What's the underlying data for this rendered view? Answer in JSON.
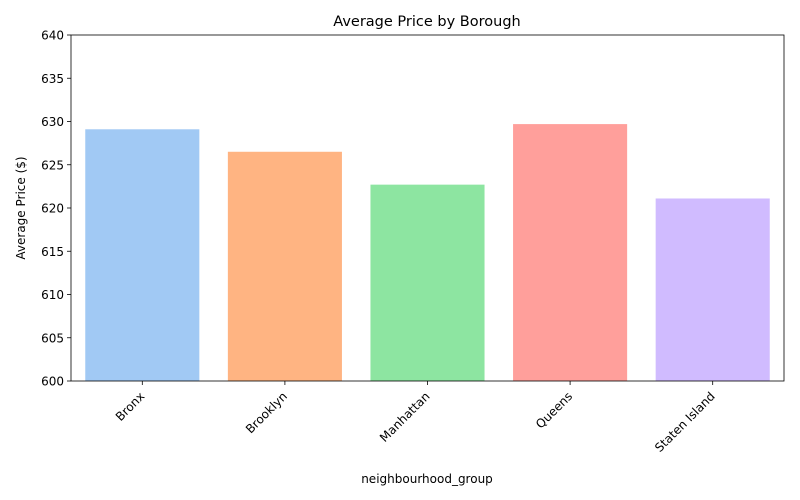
{
  "chart_data": {
    "type": "bar",
    "title": "Average Price by Borough",
    "xlabel": "neighbourhood_group",
    "ylabel": "Average Price ($)",
    "categories": [
      "Bronx",
      "Brooklyn",
      "Manhattan",
      "Queens",
      "Staten Island"
    ],
    "values": [
      629.1,
      626.5,
      622.7,
      629.7,
      621.1
    ],
    "colors": [
      "#a1c9f4",
      "#ffb482",
      "#8de5a1",
      "#ff9f9b",
      "#d0bbff"
    ],
    "ylim": [
      600,
      640
    ],
    "yticks": [
      600,
      605,
      610,
      615,
      620,
      625,
      630,
      635,
      640
    ],
    "grid": false,
    "legend": "none"
  }
}
